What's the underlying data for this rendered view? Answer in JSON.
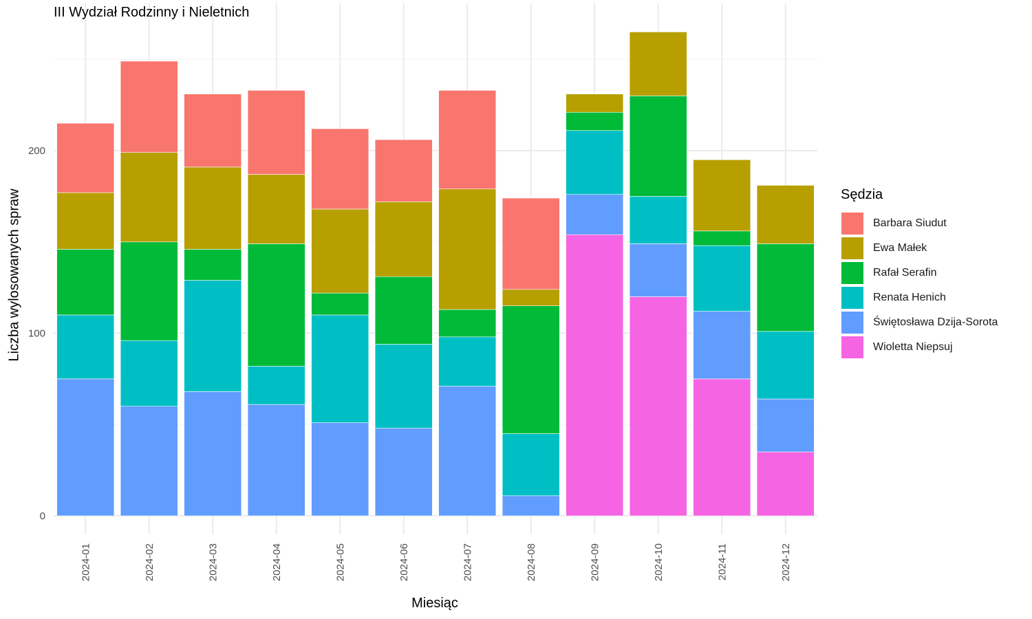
{
  "chart_data": {
    "type": "bar",
    "stacked": true,
    "title": "III Wydział Rodzinny i Nieletnich",
    "xlabel": "Miesiąc",
    "ylabel": "Liczba wylosowanych spraw",
    "ylim": [
      0,
      270
    ],
    "yticks": [
      0,
      100,
      200
    ],
    "grid": true,
    "legend_title": "Sędzia",
    "legend_position": "right",
    "categories": [
      "2024-01",
      "2024-02",
      "2024-03",
      "2024-04",
      "2024-05",
      "2024-06",
      "2024-07",
      "2024-08",
      "2024-09",
      "2024-10",
      "2024-11",
      "2024-12"
    ],
    "series": [
      {
        "name": "Wioletta Niepsuj",
        "color": "#F564E3",
        "values": [
          0,
          0,
          0,
          0,
          0,
          0,
          0,
          0,
          154,
          120,
          75,
          35
        ]
      },
      {
        "name": "Świętosława Dzija-Sorota",
        "color": "#619CFF",
        "values": [
          75,
          60,
          68,
          61,
          51,
          48,
          71,
          11,
          22,
          29,
          37,
          29
        ]
      },
      {
        "name": "Renata Henich",
        "color": "#00BFC4",
        "values": [
          35,
          36,
          61,
          21,
          59,
          46,
          27,
          34,
          35,
          26,
          36,
          37
        ]
      },
      {
        "name": "Rafał Serafin",
        "color": "#00BA38",
        "values": [
          36,
          54,
          17,
          67,
          12,
          37,
          15,
          70,
          10,
          55,
          8,
          48
        ]
      },
      {
        "name": "Ewa Małek",
        "color": "#B79F00",
        "values": [
          31,
          49,
          45,
          38,
          46,
          41,
          66,
          9,
          10,
          35,
          39,
          32
        ]
      },
      {
        "name": "Barbara Siudut",
        "color": "#F8766D",
        "values": [
          38,
          50,
          40,
          46,
          44,
          34,
          54,
          50,
          0,
          0,
          0,
          0
        ]
      }
    ]
  }
}
